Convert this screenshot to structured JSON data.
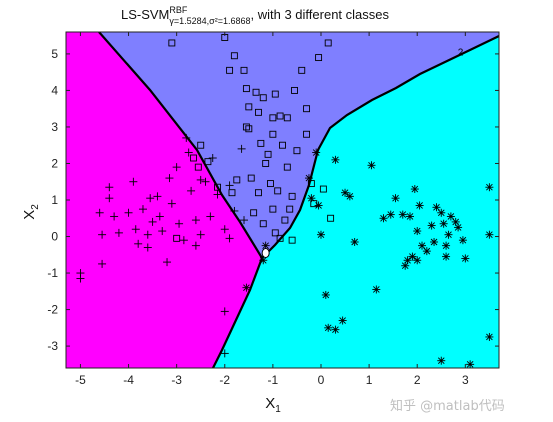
{
  "chart_data": {
    "type": "scatter",
    "title": {
      "main": "LS-SVM",
      "superscript": "RBF",
      "subscript": "γ=1.5284,σ²=1.6868",
      "rest": ", with 3 different classes"
    },
    "xlabel": "X",
    "xlabel_sub": "1",
    "ylabel": "X",
    "ylabel_sub": "2",
    "xlim": [
      -5.3,
      3.7
    ],
    "ylim": [
      -3.6,
      5.6
    ],
    "xticks": [
      -5,
      -4,
      -3,
      -2,
      -1,
      0,
      1,
      2,
      3
    ],
    "yticks": [
      -3,
      -2,
      -1,
      0,
      1,
      2,
      3,
      4,
      5
    ],
    "grid": false,
    "region_colors": {
      "class1": "#ff00ff",
      "class2": "#7f7fff",
      "class3": "#00ffff"
    },
    "boundary_points": [
      [
        -1.15,
        -0.45
      ]
    ],
    "boundary_labels": [
      {
        "text": "2",
        "x": 2.9,
        "y": 4.95
      }
    ],
    "series": [
      {
        "marker": "plus",
        "points": [
          [
            -5.0,
            -1.0
          ],
          [
            -5.0,
            -1.15
          ],
          [
            -4.6,
            0.65
          ],
          [
            -4.55,
            0.05
          ],
          [
            -4.55,
            -0.75
          ],
          [
            -4.4,
            1.35
          ],
          [
            -4.4,
            1.05
          ],
          [
            -4.3,
            0.55
          ],
          [
            -4.2,
            0.1
          ],
          [
            -4.0,
            0.65
          ],
          [
            -3.9,
            1.5
          ],
          [
            -3.85,
            0.2
          ],
          [
            -3.8,
            -0.2
          ],
          [
            -3.7,
            0.75
          ],
          [
            -3.6,
            0.05
          ],
          [
            -3.6,
            -0.3
          ],
          [
            -3.55,
            1.05
          ],
          [
            -3.5,
            0.4
          ],
          [
            -3.4,
            1.1
          ],
          [
            -3.35,
            0.55
          ],
          [
            -3.3,
            0.15
          ],
          [
            -3.2,
            -0.7
          ],
          [
            -3.15,
            1.6
          ],
          [
            -3.1,
            0.9
          ],
          [
            -3.0,
            1.9
          ],
          [
            -2.95,
            0.35
          ],
          [
            -2.85,
            -0.1
          ],
          [
            -2.7,
            1.25
          ],
          [
            -2.6,
            0.45
          ],
          [
            -2.6,
            -0.25
          ],
          [
            -2.5,
            0.05
          ],
          [
            -2.4,
            1.5
          ],
          [
            -2.3,
            0.55
          ],
          [
            -2.25,
            2.15
          ],
          [
            -2.15,
            1.15
          ],
          [
            -2.0,
            0.2
          ],
          [
            -1.9,
            1.4
          ],
          [
            -1.8,
            0.7
          ],
          [
            -1.65,
            2.4
          ],
          [
            -1.6,
            0.45
          ],
          [
            -2.8,
            2.7
          ],
          [
            -2.75,
            2.3
          ],
          [
            -2.5,
            1.55
          ],
          [
            -1.9,
            -0.05
          ],
          [
            -2.0,
            -2.05
          ],
          [
            -2.0,
            -3.2
          ]
        ]
      },
      {
        "marker": "square",
        "points": [
          [
            -3.0,
            -0.05
          ],
          [
            -3.1,
            5.3
          ],
          [
            -2.0,
            5.45
          ],
          [
            -1.9,
            4.55
          ],
          [
            -1.8,
            4.95
          ],
          [
            -1.6,
            4.55
          ],
          [
            -1.55,
            4.05
          ],
          [
            -1.5,
            3.55
          ],
          [
            -1.5,
            2.95
          ],
          [
            -1.3,
            3.4
          ],
          [
            -1.2,
            3.8
          ],
          [
            -1.25,
            2.55
          ],
          [
            -1.15,
            2.0
          ],
          [
            -1.0,
            2.8
          ],
          [
            -0.95,
            3.9
          ],
          [
            -0.85,
            3.3
          ],
          [
            -0.8,
            2.5
          ],
          [
            -0.7,
            1.9
          ],
          [
            -0.6,
            1.1
          ],
          [
            -0.55,
            4.0
          ],
          [
            -0.5,
            2.35
          ],
          [
            -0.4,
            4.55
          ],
          [
            -0.3,
            3.5
          ],
          [
            -0.3,
            2.8
          ],
          [
            -0.2,
            1.45
          ],
          [
            -0.15,
            0.9
          ],
          [
            -0.05,
            4.9
          ],
          [
            0.05,
            1.3
          ],
          [
            0.15,
            5.3
          ],
          [
            0.2,
            0.5
          ],
          [
            -1.45,
            1.6
          ],
          [
            -1.4,
            0.65
          ],
          [
            -1.3,
            1.2
          ],
          [
            -1.2,
            0.35
          ],
          [
            -1.05,
            1.45
          ],
          [
            -1.0,
            0.75
          ],
          [
            -0.95,
            0.1
          ],
          [
            -0.9,
            1.25
          ],
          [
            -0.85,
            -0.05
          ],
          [
            -0.75,
            0.45
          ],
          [
            -0.65,
            0.75
          ],
          [
            -0.6,
            -0.1
          ],
          [
            -1.1,
            2.25
          ],
          [
            -1.75,
            1.55
          ],
          [
            -1.85,
            1.2
          ],
          [
            -2.15,
            1.35
          ],
          [
            -2.35,
            2.05
          ],
          [
            -2.5,
            2.5
          ],
          [
            -2.55,
            1.9
          ],
          [
            -2.65,
            2.15
          ],
          [
            -0.7,
            3.25
          ],
          [
            -1.0,
            3.25
          ],
          [
            -1.35,
            3.95
          ],
          [
            -1.55,
            3.0
          ]
        ]
      },
      {
        "marker": "star",
        "points": [
          [
            -1.15,
            -0.25
          ],
          [
            -1.55,
            -1.4
          ],
          [
            -1.2,
            -0.65
          ],
          [
            -0.25,
            1.6
          ],
          [
            -0.2,
            1.05
          ],
          [
            -0.1,
            2.3
          ],
          [
            -0.05,
            0.85
          ],
          [
            0.0,
            0.05
          ],
          [
            0.1,
            -1.6
          ],
          [
            0.15,
            -2.5
          ],
          [
            0.3,
            2.1
          ],
          [
            0.3,
            -2.55
          ],
          [
            0.45,
            -2.3
          ],
          [
            0.5,
            1.2
          ],
          [
            0.6,
            1.1
          ],
          [
            0.7,
            -0.15
          ],
          [
            1.05,
            1.95
          ],
          [
            1.15,
            -1.45
          ],
          [
            1.3,
            0.5
          ],
          [
            1.45,
            0.6
          ],
          [
            1.55,
            1.05
          ],
          [
            1.7,
            0.6
          ],
          [
            1.75,
            -0.8
          ],
          [
            1.8,
            -0.65
          ],
          [
            1.85,
            0.55
          ],
          [
            1.9,
            -0.55
          ],
          [
            1.95,
            1.3
          ],
          [
            2.0,
            0.15
          ],
          [
            2.0,
            -0.65
          ],
          [
            2.05,
            0.85
          ],
          [
            2.1,
            -0.25
          ],
          [
            2.2,
            -0.4
          ],
          [
            2.3,
            0.3
          ],
          [
            2.35,
            -0.15
          ],
          [
            2.4,
            0.8
          ],
          [
            2.5,
            0.65
          ],
          [
            2.55,
            0.35
          ],
          [
            2.6,
            -0.55
          ],
          [
            2.6,
            -0.25
          ],
          [
            2.65,
            0.05
          ],
          [
            2.7,
            0.55
          ],
          [
            2.8,
            0.4
          ],
          [
            2.85,
            0.25
          ],
          [
            2.95,
            -0.1
          ],
          [
            3.0,
            -0.6
          ],
          [
            3.5,
            1.35
          ],
          [
            3.5,
            0.05
          ],
          [
            3.5,
            -2.75
          ],
          [
            2.5,
            -3.4
          ],
          [
            3.1,
            -3.5
          ]
        ]
      }
    ]
  },
  "watermark": "知乎 @matlab代码"
}
